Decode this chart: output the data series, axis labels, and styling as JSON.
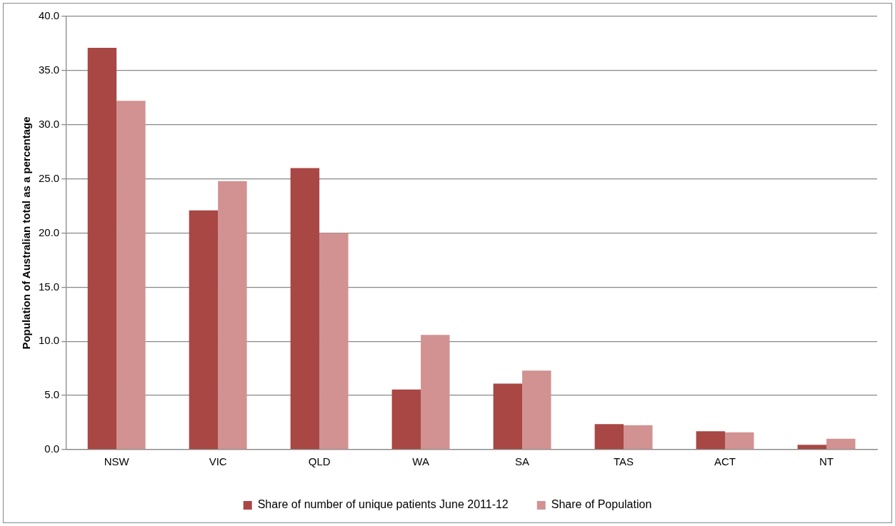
{
  "chart_data": {
    "type": "bar",
    "ylabel": "Population of Australian total as a percentage",
    "categories": [
      "NSW",
      "VIC",
      "QLD",
      "WA",
      "SA",
      "TAS",
      "ACT",
      "NT"
    ],
    "series": [
      {
        "name": "Share of number of unique patients June 2011-12",
        "color": "#a84744",
        "values": [
          37.1,
          22.1,
          26.0,
          5.55,
          6.1,
          2.35,
          1.7,
          0.45
        ]
      },
      {
        "name": "Share of Population",
        "color": "#d29292",
        "values": [
          32.2,
          24.8,
          20.0,
          10.6,
          7.3,
          2.25,
          1.6,
          1.0
        ]
      }
    ],
    "ylim": [
      0,
      40
    ],
    "yticks": [
      {
        "value": 0,
        "label": "0.0"
      },
      {
        "value": 5,
        "label": "5.0"
      },
      {
        "value": 10,
        "label": "10.0"
      },
      {
        "value": 15,
        "label": "15.0"
      },
      {
        "value": 20,
        "label": "20.0"
      },
      {
        "value": 25,
        "label": "25.0"
      },
      {
        "value": 30,
        "label": "30.0"
      },
      {
        "value": 35,
        "label": "35.0"
      },
      {
        "value": 40,
        "label": "40.0"
      }
    ],
    "grid": "y",
    "legend": "bottom"
  }
}
